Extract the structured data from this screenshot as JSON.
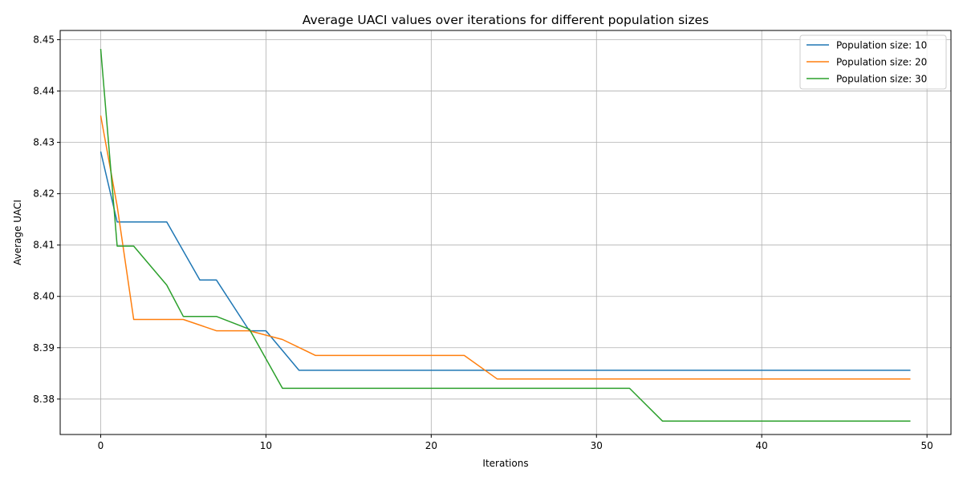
{
  "chart_data": {
    "type": "line",
    "title": "Average UACI values over iterations for different population sizes",
    "xlabel": "Iterations",
    "ylabel": "Average UACI",
    "xlim": [
      -2.45,
      51.45
    ],
    "ylim": [
      8.3731,
      8.4518
    ],
    "xticks": [
      0,
      10,
      20,
      30,
      40,
      50
    ],
    "yticks": [
      8.38,
      8.39,
      8.4,
      8.41,
      8.42,
      8.43,
      8.44,
      8.45
    ],
    "xtick_labels": [
      "0",
      "10",
      "20",
      "30",
      "40",
      "50"
    ],
    "ytick_labels": [
      "8.38",
      "8.39",
      "8.40",
      "8.41",
      "8.42",
      "8.43",
      "8.44",
      "8.45"
    ],
    "grid": true,
    "legend_position": "top-right",
    "series": [
      {
        "name": "Population size: 10",
        "color": "#1f77b4",
        "points": [
          [
            0,
            8.4282
          ],
          [
            1,
            8.4145
          ],
          [
            4,
            8.4145
          ],
          [
            6,
            8.4032
          ],
          [
            7,
            8.4032
          ],
          [
            9,
            8.3933
          ],
          [
            10,
            8.3933
          ],
          [
            12,
            8.3856
          ],
          [
            49,
            8.3856
          ]
        ]
      },
      {
        "name": "Population size: 20",
        "color": "#ff7f0e",
        "points": [
          [
            0,
            8.4352
          ],
          [
            1,
            8.4176
          ],
          [
            2,
            8.3955
          ],
          [
            5,
            8.3955
          ],
          [
            7,
            8.3933
          ],
          [
            9,
            8.3933
          ],
          [
            11,
            8.3916
          ],
          [
            13,
            8.3885
          ],
          [
            22,
            8.3885
          ],
          [
            24,
            8.3839
          ],
          [
            49,
            8.3839
          ]
        ]
      },
      {
        "name": "Population size: 30",
        "color": "#2ca02c",
        "points": [
          [
            0,
            8.4482
          ],
          [
            1,
            8.4098
          ],
          [
            2,
            8.4098
          ],
          [
            4,
            8.4022
          ],
          [
            5,
            8.3961
          ],
          [
            7,
            8.3961
          ],
          [
            9,
            8.3936
          ],
          [
            11,
            8.3821
          ],
          [
            32,
            8.3821
          ],
          [
            34,
            8.3757
          ],
          [
            49,
            8.3757
          ]
        ]
      }
    ]
  }
}
